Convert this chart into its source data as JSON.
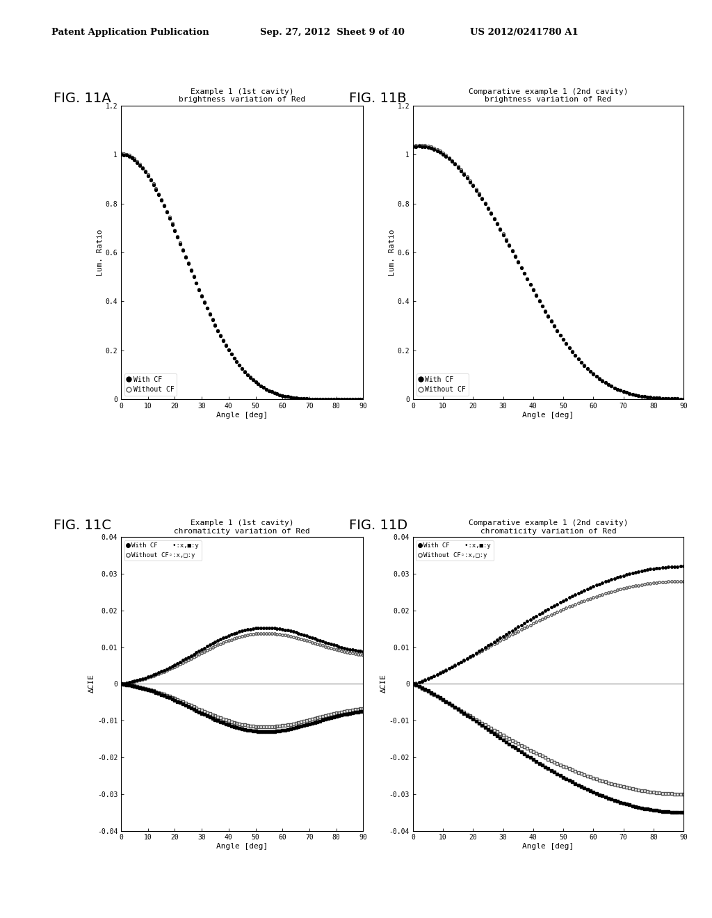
{
  "header_left": "Patent Application Publication",
  "header_mid": "Sep. 27, 2012  Sheet 9 of 40",
  "header_right": "US 2012/0241780 A1",
  "fig_labels": [
    "FIG. 11A",
    "FIG. 11B",
    "FIG. 11C",
    "FIG. 11D"
  ],
  "titles": [
    "Example 1 (1st cavity)\nbrightness variation of Red",
    "Comparative example 1 (2nd cavity)\nbrightness variation of Red",
    "Example 1 (1st cavity)\nchromaticity variation of Red",
    "Comparative example 1 (2nd cavity)\nchromaticity variation of Red"
  ],
  "ylabels_bright": "Lum. Ratio",
  "ylabels_chroma": "∆CIE",
  "xlabel": "Angle [deg]",
  "bg_color": "#ffffff"
}
